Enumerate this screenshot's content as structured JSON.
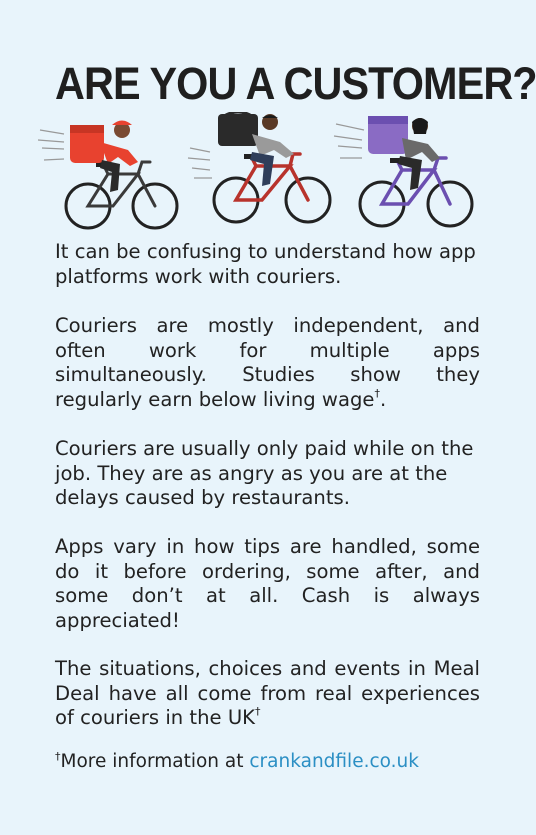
{
  "title": "ARE YOU A CUSTOMER?",
  "paragraphs": [
    {
      "text": "It can be confusing to understand how app platforms work with couriers."
    },
    {
      "text": "Couriers are mostly independent, and often work for multiple apps simultaneously. Studies show they regularly earn below living wage",
      "mark": "†",
      "after": "."
    },
    {
      "text": "Couriers are usually only paid while on the job. They are as angry as you are at the delays caused by restaurants."
    },
    {
      "text": "Apps vary in how tips are handled, some do it before ordering, some after, and some don’t at all. Cash is always appreciated!"
    },
    {
      "text": "The situations, choices and events in Meal Deal have all come from real experiences of couriers in the UK",
      "mark": "†"
    }
  ],
  "footnote": {
    "mark": "†",
    "text": "More information at ",
    "link": "crankandfile.co.uk"
  },
  "illustration": {
    "icons": [
      "courier-red-bag-cyclist-icon",
      "courier-black-bag-cyclist-icon",
      "courier-purple-bag-cyclist-icon"
    ],
    "colors": {
      "red": "#e8422f",
      "black": "#2a2a2a",
      "purple": "#8a6bc4",
      "bike_red": "#b8332c",
      "bike_purple": "#6b4fb0"
    }
  }
}
